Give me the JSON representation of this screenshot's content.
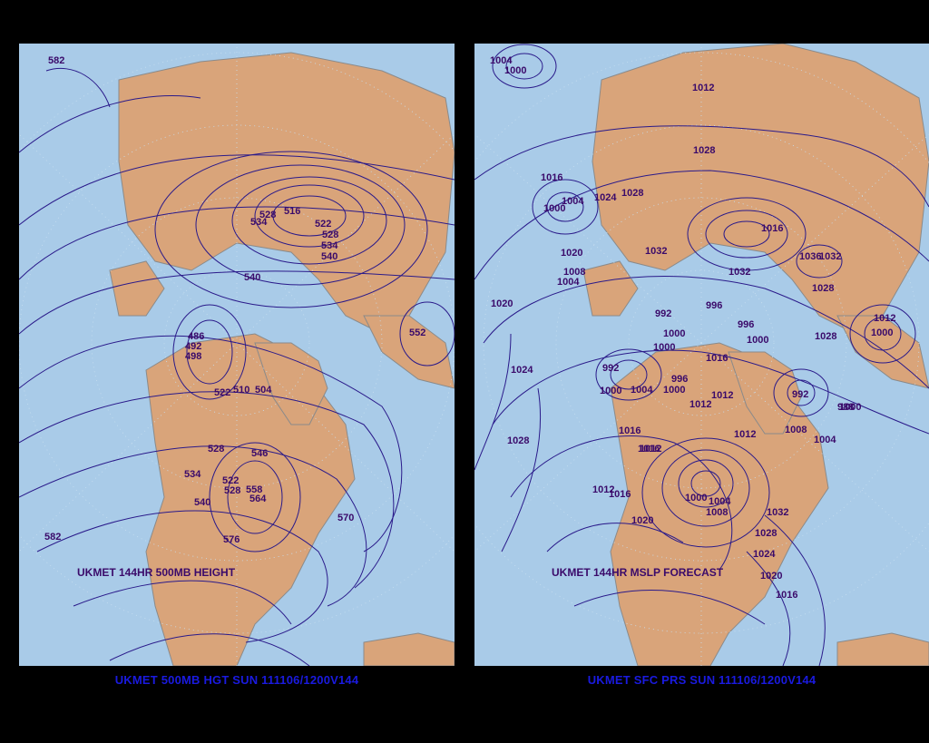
{
  "left_panel": {
    "inner_title": "UKMET 144HR 500MB HEIGHT",
    "caption": "UKMET 500MB HGT SUN 111106/1200V144",
    "labels": [
      "582",
      "516",
      "522",
      "528",
      "534",
      "540",
      "534",
      "528",
      "540",
      "552",
      "486",
      "492",
      "498",
      "522",
      "510",
      "504",
      "528",
      "546",
      "534",
      "522",
      "528",
      "540",
      "564",
      "558",
      "570",
      "576",
      "582"
    ]
  },
  "right_panel": {
    "inner_title": "UKMET 144HR MSLP FORECAST",
    "caption": "UKMET SFC PRS SUN 111106/1200V144",
    "labels": [
      "1004",
      "1000",
      "1012",
      "1028",
      "1016",
      "1004",
      "1000",
      "1024",
      "1028",
      "1032",
      "1016",
      "1020",
      "1008",
      "1004",
      "1032",
      "1036",
      "1032",
      "1028",
      "1020",
      "996",
      "992",
      "1000",
      "1000",
      "996",
      "1000",
      "1016",
      "1024",
      "992",
      "1000",
      "1004",
      "1000",
      "996",
      "1012",
      "1012",
      "1016",
      "1008",
      "992",
      "1004",
      "1000",
      "1012",
      "1016",
      "1028",
      "1012",
      "1016",
      "1000",
      "1004",
      "1008",
      "1020",
      "1032",
      "1028",
      "1024",
      "1020",
      "1016",
      "1012",
      "1028",
      "1000",
      "1012",
      "988"
    ]
  },
  "colors": {
    "ocean": "#a9cbe8",
    "land": "#d9a47a",
    "contour": "#2a1a8a",
    "caption": "#1a1ae0",
    "label": "#3a0a6a"
  }
}
